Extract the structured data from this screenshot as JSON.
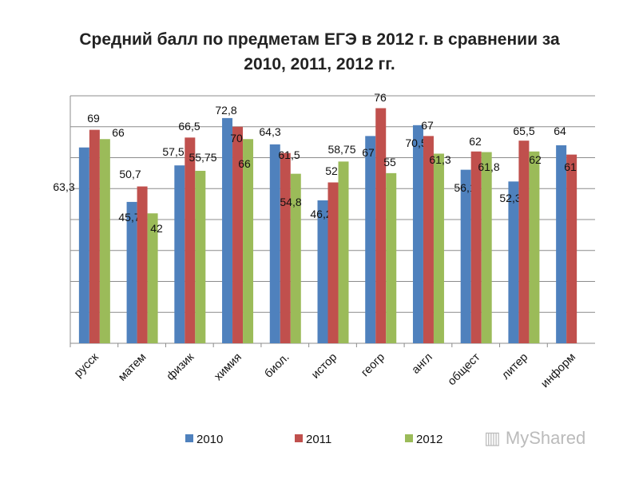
{
  "chart_data": {
    "type": "bar",
    "title": "Средний балл по предметам ЕГЭ в 2012 г. в сравнении за 2010, 2011, 2012 гг.",
    "title_lines": [
      "Средний балл по предметам ЕГЭ в 2012 г. в сравнении за",
      "2010, 2011, 2012 гг."
    ],
    "categories": [
      "русск",
      "матем",
      "физик",
      "химия",
      "биол.",
      "истор",
      "геогр",
      "англ",
      "общест",
      "литер",
      "информ"
    ],
    "series": [
      {
        "name": "2010",
        "color": "#4F81BD",
        "values": [
          63.3,
          45.7,
          57.5,
          72.8,
          64.3,
          46.2,
          67,
          70.5,
          56.1,
          52.3,
          64
        ],
        "labels": [
          "63,3",
          "45,7",
          "57,5",
          "72,8",
          "64,3",
          "46,2",
          "67",
          "70,5",
          "56,1",
          "52,3",
          "64"
        ]
      },
      {
        "name": "2011",
        "color": "#C0504D",
        "values": [
          69,
          50.7,
          66.5,
          70,
          61.5,
          52,
          76,
          67,
          62,
          65.5,
          61
        ],
        "labels": [
          "69",
          "50,7",
          "66,5",
          "70",
          "61,5",
          "52",
          "76",
          "67",
          "62",
          "65,5",
          "61"
        ]
      },
      {
        "name": "2012",
        "color": "#9BBB59",
        "values": [
          66,
          42,
          55.75,
          66,
          54.8,
          58.75,
          55,
          61.3,
          61.8,
          62,
          null
        ],
        "labels": [
          "66",
          "42",
          "55,75",
          "66",
          "54,8",
          "58,75",
          "55",
          "61,3",
          "61,8",
          "62",
          ""
        ]
      }
    ],
    "ylim": [
      0,
      80
    ],
    "ytick_step": 10,
    "y_tick_labels_shown": false,
    "grid": true,
    "legend": "bottom"
  },
  "watermark": "MyShared"
}
